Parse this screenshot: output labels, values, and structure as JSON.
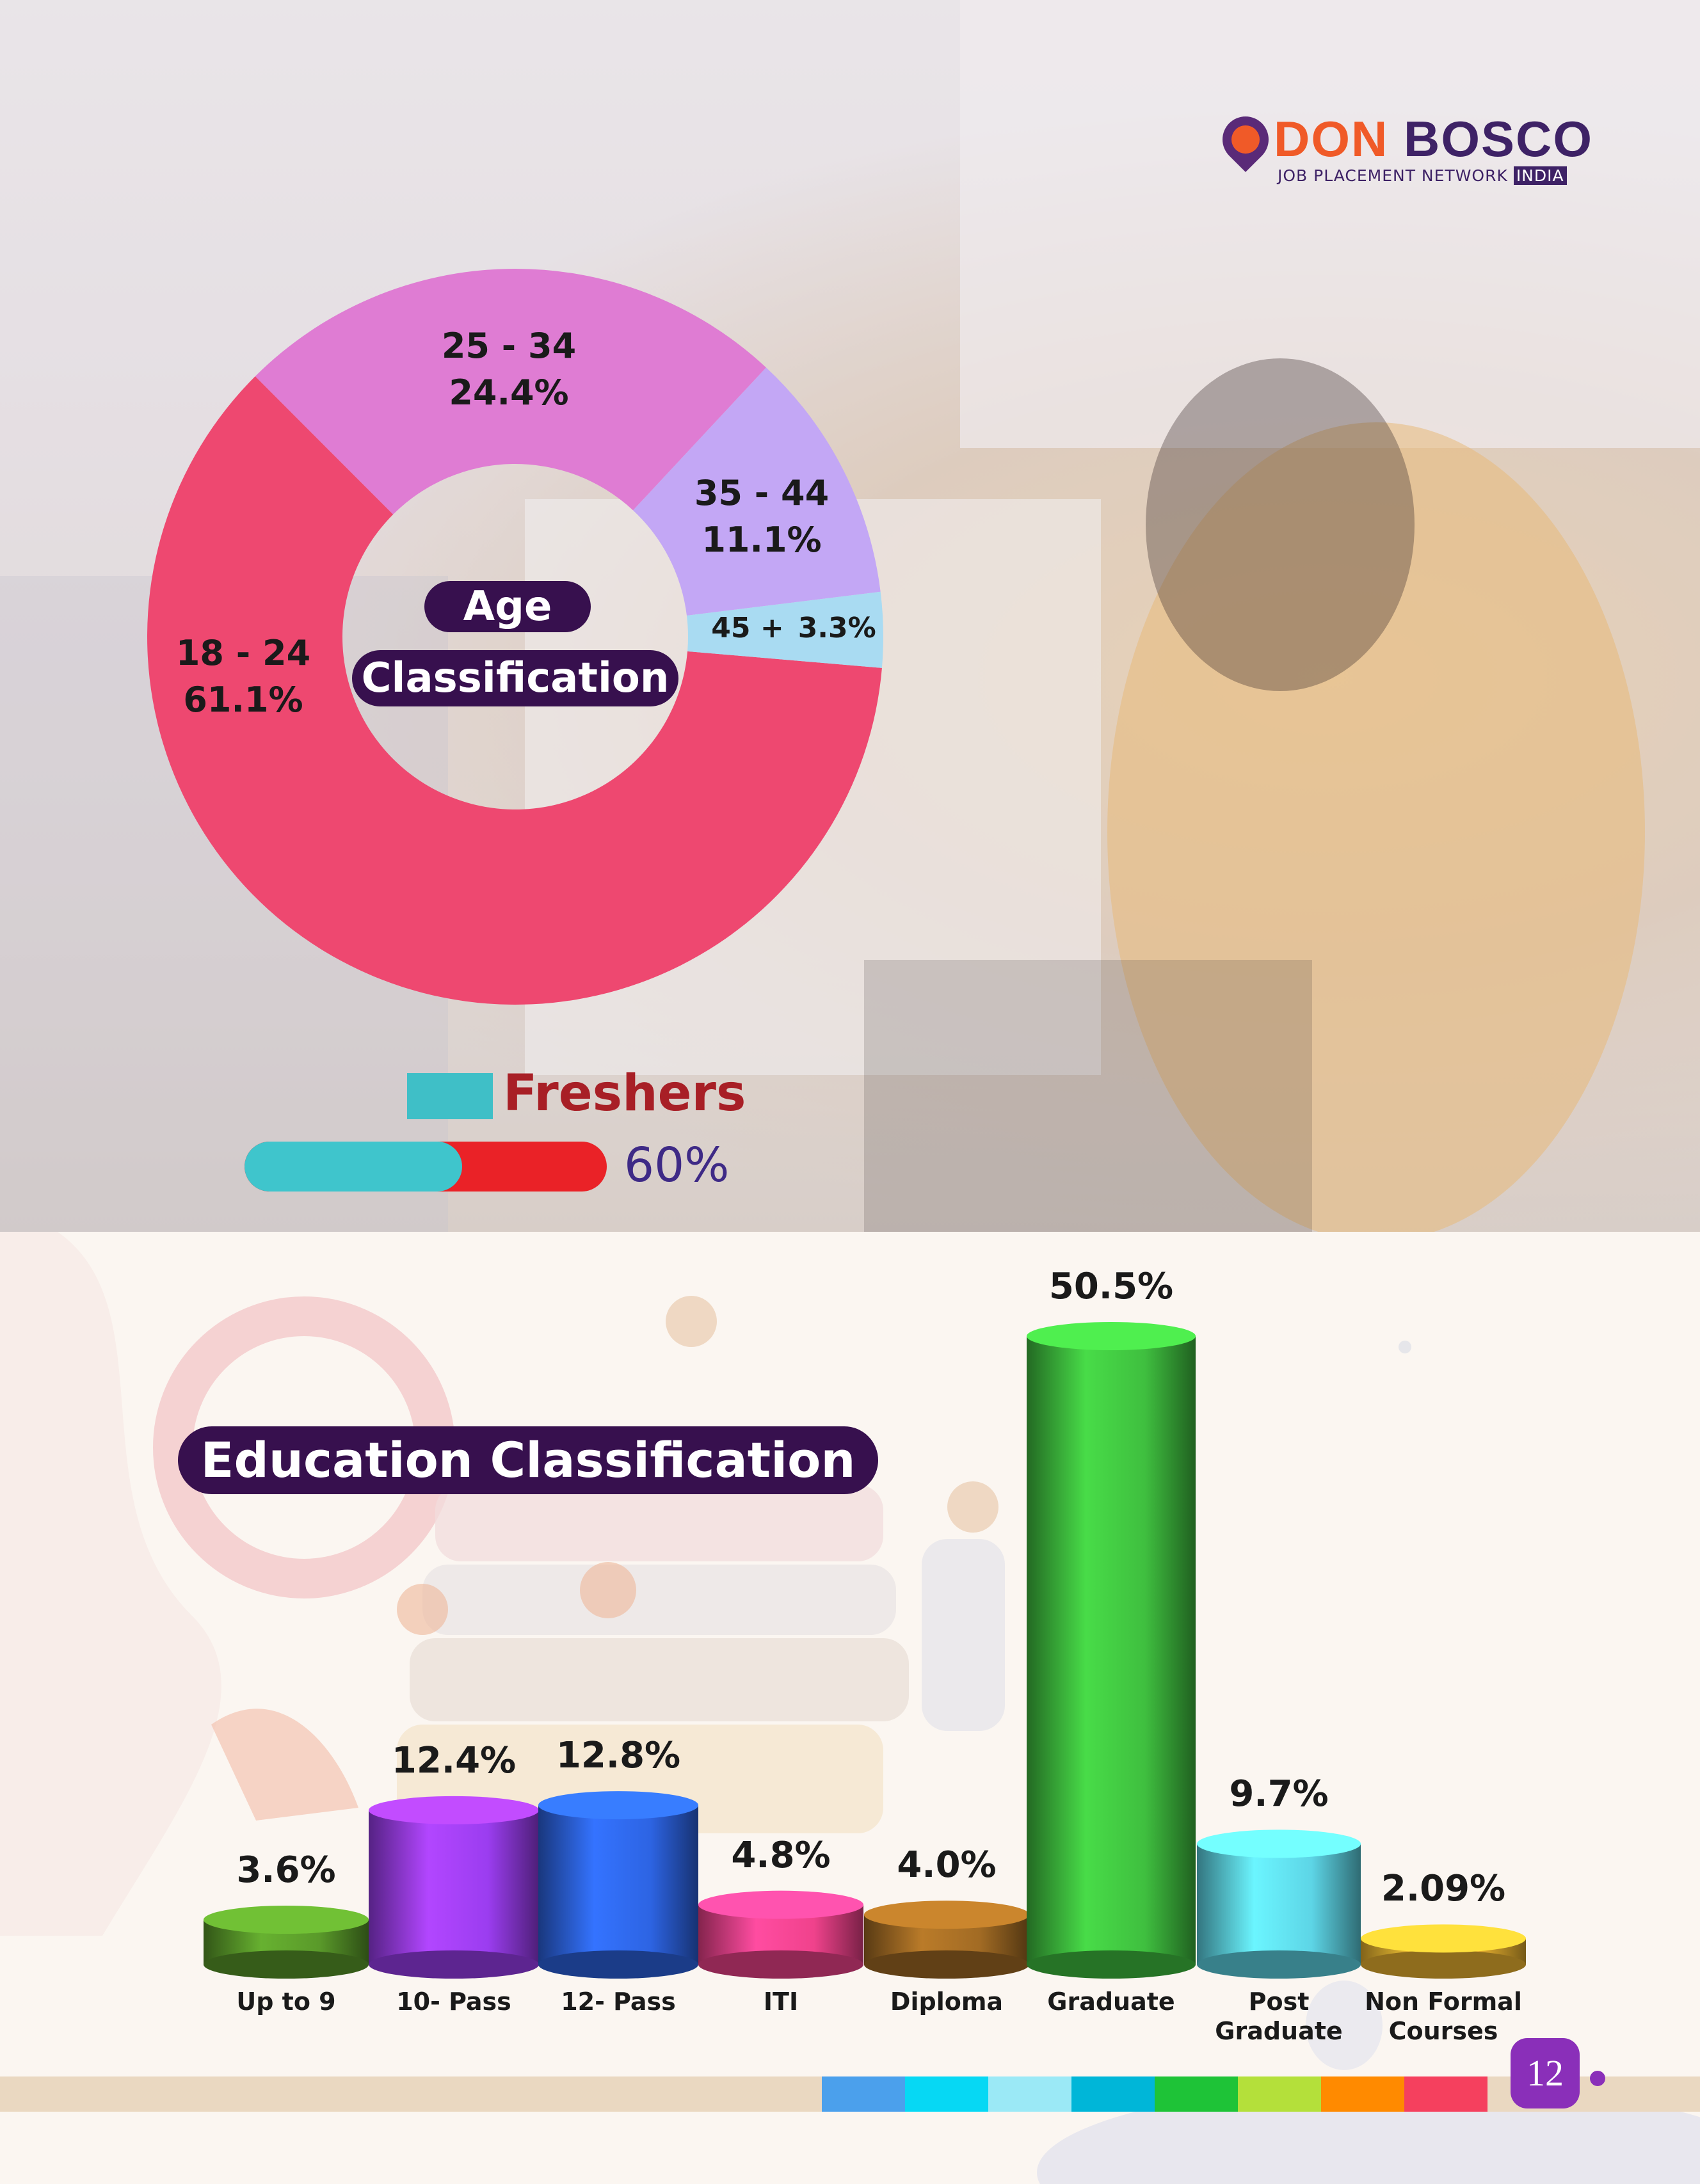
{
  "brand": {
    "name_part1": "DON",
    "name_part2": "BOSCO",
    "subtitle": "JOB PLACEMENT NETWORK",
    "subtitle_tag": "INDIA"
  },
  "age_section": {
    "title_line1": "Age",
    "title_line2": "Classification"
  },
  "freshers": {
    "label": "Freshers",
    "value_label": "60%",
    "fraction": 0.6,
    "fill_color": "#3fc5cc",
    "track_color": "#ea2227"
  },
  "education_section": {
    "title": "Education Classification"
  },
  "page_number": "12",
  "footer_colors": [
    "#4ba0ec",
    "#06d8f4",
    "#9be9f6",
    "#00b6d8",
    "#1ec337",
    "#b4e03a",
    "#ff8a00",
    "#f5405e"
  ],
  "chart_data": [
    {
      "type": "pie",
      "variant": "donut",
      "title": "Age Classification",
      "slices": [
        {
          "label": "18 - 24",
          "value": 61.1,
          "value_label": "61.1%",
          "color": "#ee4870"
        },
        {
          "label": "25 - 34",
          "value": 24.4,
          "value_label": "24.4%",
          "color": "#df7cd3"
        },
        {
          "label": "35 - 44",
          "value": 11.1,
          "value_label": "11.1%",
          "color": "#c3a7f5"
        },
        {
          "label": "45 +",
          "value": 3.3,
          "value_label": "3.3%",
          "color": "#a9dbf2"
        }
      ]
    },
    {
      "type": "bar",
      "title": "Education Classification",
      "ylim": [
        0,
        55
      ],
      "categories": [
        {
          "line1": "Up to 9",
          "line2": ""
        },
        {
          "line1": "10- Pass",
          "line2": ""
        },
        {
          "line1": "12- Pass",
          "line2": ""
        },
        {
          "line1": "ITI",
          "line2": ""
        },
        {
          "line1": "Diploma",
          "line2": ""
        },
        {
          "line1": "Graduate",
          "line2": ""
        },
        {
          "line1": "Post",
          "line2": "Graduate"
        },
        {
          "line1": "Non Formal",
          "line2": "Courses"
        }
      ],
      "values": [
        3.6,
        12.4,
        12.8,
        4.8,
        4.0,
        50.5,
        9.7,
        2.09
      ],
      "value_labels": [
        "3.6%",
        "12.4%",
        "12.8%",
        "4.8%",
        "4.0%",
        "50.5%",
        "9.7%",
        "2.09%"
      ],
      "colors": [
        "#5a9a2a",
        "#9b3df0",
        "#2d64e3",
        "#f0428c",
        "#a26b24",
        "#3fbf3f",
        "#5dd5e6",
        "#ecb430"
      ]
    }
  ]
}
